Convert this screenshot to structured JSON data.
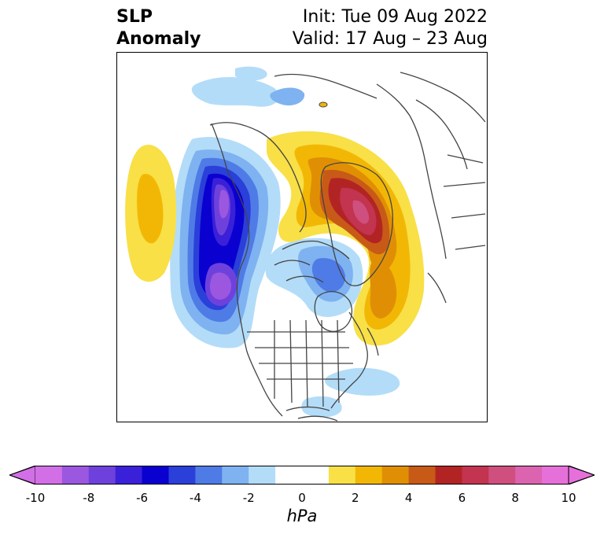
{
  "title": {
    "left_line1": "SLP",
    "left_line2": "Anomaly",
    "right_line1": "Init: Tue 09 Aug 2022",
    "right_line2": "Valid: 17 Aug – 23 Aug"
  },
  "colorbar": {
    "units": "hPa",
    "ticks": [
      "-10",
      "-8",
      "-6",
      "-4",
      "-2",
      "0",
      "2",
      "4",
      "6",
      "8",
      "10"
    ],
    "tick_values": [
      -10,
      -8,
      -6,
      -4,
      -2,
      0,
      2,
      4,
      6,
      8,
      10
    ],
    "colors": [
      "#d26fe6",
      "#9b57e0",
      "#6f41dc",
      "#3a20d8",
      "#0a00d0",
      "#2b3fd9",
      "#4f7be6",
      "#7fb2f0",
      "#b3dcf8",
      "#ffffff",
      "#ffffff",
      "#f8e046",
      "#f2b705",
      "#e08f05",
      "#c85a18",
      "#b22424",
      "#c2344f",
      "#cf4f7e",
      "#dc63b0",
      "#e670da"
    ]
  },
  "colors": {
    "coastline": "#444444",
    "negative_strong": "#0a00d0",
    "positive_strong": "#b22424"
  }
}
